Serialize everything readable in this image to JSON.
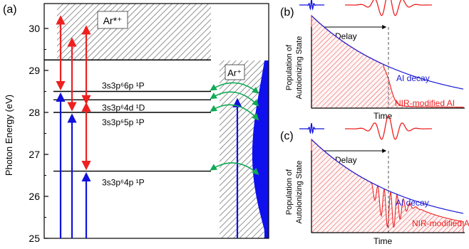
{
  "panel_a": {
    "letter": "(a)",
    "ylabel": "Photon Energy (eV)",
    "yticks": [
      25,
      26,
      27,
      28,
      29,
      30
    ],
    "ylim": [
      25,
      30.45
    ],
    "region_upper_label": "Ar*⁺",
    "region_right_label": "Ar⁺",
    "levels": [
      {
        "energy": 28.5,
        "label": "3s3p⁶6p ¹P"
      },
      {
        "energy": 28.3,
        "label": "3s3p⁶4d ¹D"
      },
      {
        "energy": 28.0,
        "label": "3s3p⁶5p ¹P"
      },
      {
        "energy": 26.6,
        "label": "3s3p⁶4p ¹P"
      }
    ],
    "continuum_threshold": 29.25,
    "colors": {
      "xuv": "#1010dd",
      "nir": "#ee2020",
      "coupling": "#11aa55"
    }
  },
  "panel_b": {
    "letter": "(b)",
    "delay_label": "Delay",
    "ylabel_line1": "Population of",
    "ylabel_line2": "Autoionizing State",
    "xlabel": "Time",
    "curve1": "AI decay",
    "curve2": "NIR-modified AI"
  },
  "panel_c": {
    "letter": "(c)",
    "delay_label": "Delay",
    "ylabel_line1": "Population of",
    "ylabel_line2": "Autoionizing State",
    "xlabel": "Time",
    "curve1": "AI decay",
    "curve2": "NIR-modified A"
  }
}
